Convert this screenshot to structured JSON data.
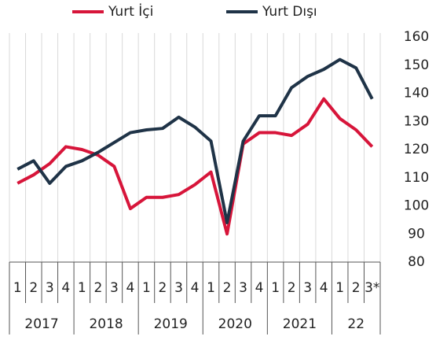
{
  "chart_data": {
    "type": "line",
    "categories": [
      "1",
      "2",
      "3",
      "4",
      "1",
      "2",
      "3",
      "4",
      "1",
      "2",
      "3",
      "4",
      "1",
      "2",
      "3",
      "4",
      "1",
      "2",
      "3",
      "4",
      "1",
      "2",
      "3*"
    ],
    "years": [
      "2017",
      "2018",
      "2019",
      "2020",
      "2021",
      "22"
    ],
    "series": [
      {
        "name": "Yurt İçi",
        "color": "#d7153a",
        "values": [
          108,
          111,
          115,
          121,
          120,
          118,
          114,
          99,
          103,
          103,
          104,
          107.5,
          112,
          90,
          122,
          126,
          126,
          125,
          129,
          138,
          131,
          127,
          121
        ]
      },
      {
        "name": "Yurt Dışı",
        "color": "#1f3347",
        "values": [
          113,
          116,
          108,
          114,
          116,
          119,
          122.5,
          126,
          127,
          127.5,
          131.5,
          128,
          123,
          94,
          123,
          132,
          132,
          142,
          146,
          148.5,
          152,
          149,
          138
        ]
      }
    ],
    "ylim": [
      80,
      160
    ],
    "yticks": [
      80,
      90,
      100,
      110,
      120,
      130,
      140,
      150,
      160
    ],
    "legend": "top"
  }
}
